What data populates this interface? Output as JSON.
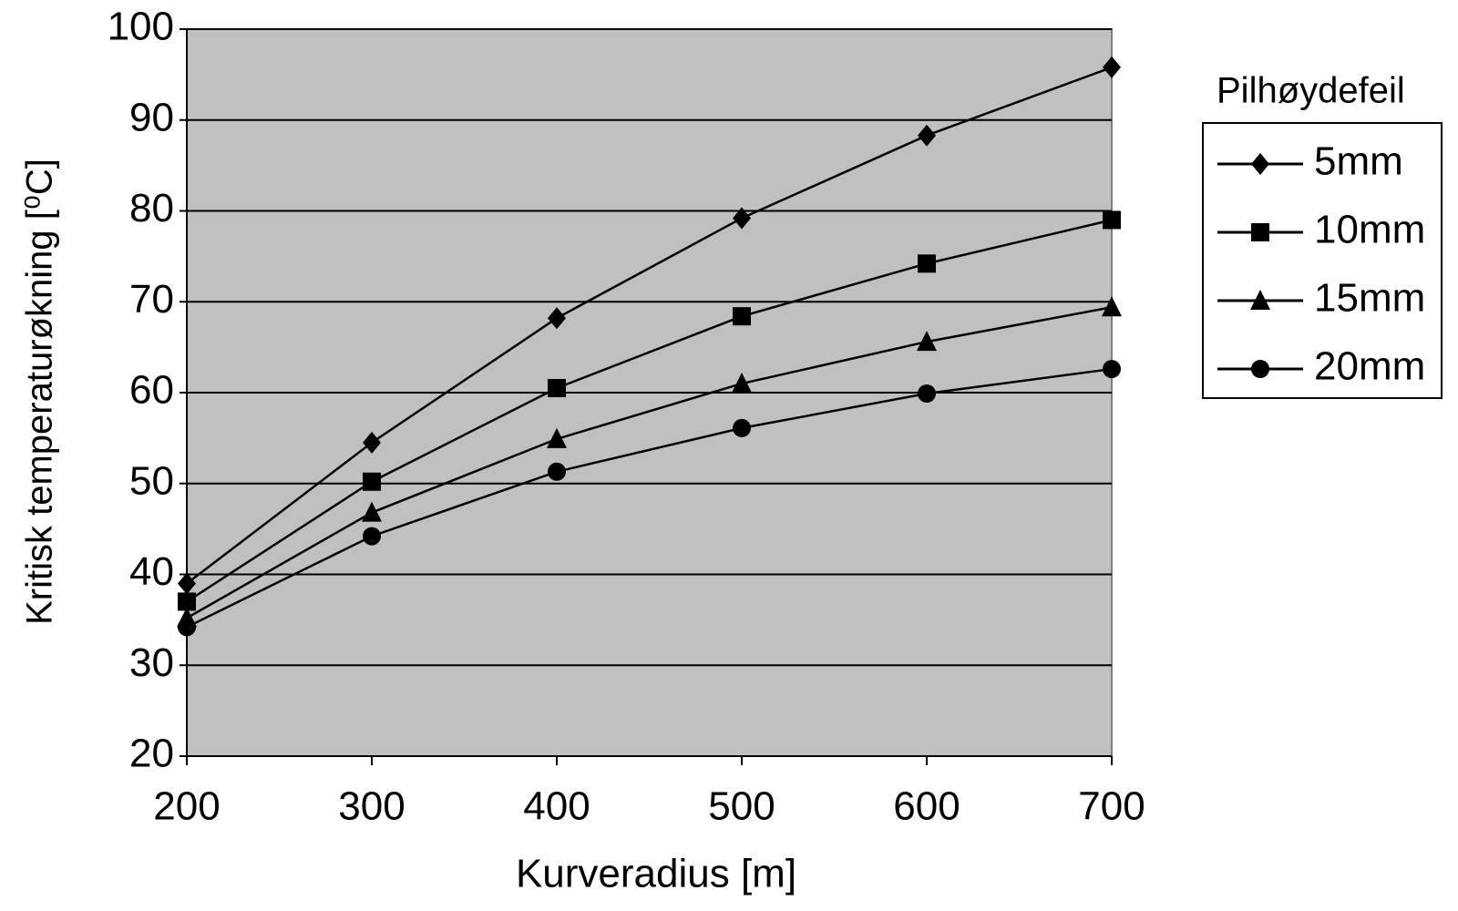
{
  "chart_data": {
    "type": "line",
    "title_legend": "Pilhøydefeil",
    "x_label": "Kurveradius [m]",
    "y_label": "Kritisk temperaturøkning [⁰C]",
    "x": [
      200,
      300,
      400,
      500,
      600,
      700
    ],
    "series": [
      {
        "name": "5mm",
        "color": "#000000",
        "marker": "diamond",
        "values": [
          39,
          54.5,
          68.2,
          79.2,
          88.3,
          95.8
        ]
      },
      {
        "name": "10mm",
        "color": "#000000",
        "marker": "square",
        "values": [
          37,
          50.2,
          60.5,
          68.4,
          74.2,
          79
        ]
      },
      {
        "name": "15mm",
        "color": "#000000",
        "marker": "triangle",
        "values": [
          35.2,
          46.8,
          54.9,
          61,
          65.6,
          69.4
        ]
      },
      {
        "name": "20mm",
        "color": "#000000",
        "marker": "circle",
        "values": [
          34.2,
          44.2,
          51.3,
          56.1,
          59.9,
          62.6
        ]
      }
    ],
    "xlim": [
      200,
      700
    ],
    "xticks": [
      200,
      300,
      400,
      500,
      600,
      700
    ],
    "ylim": [
      20,
      100
    ],
    "yticks": [
      20,
      30,
      40,
      50,
      60,
      70,
      80,
      90,
      100
    ],
    "grid": true,
    "plot_background": "#c0c0c0"
  }
}
